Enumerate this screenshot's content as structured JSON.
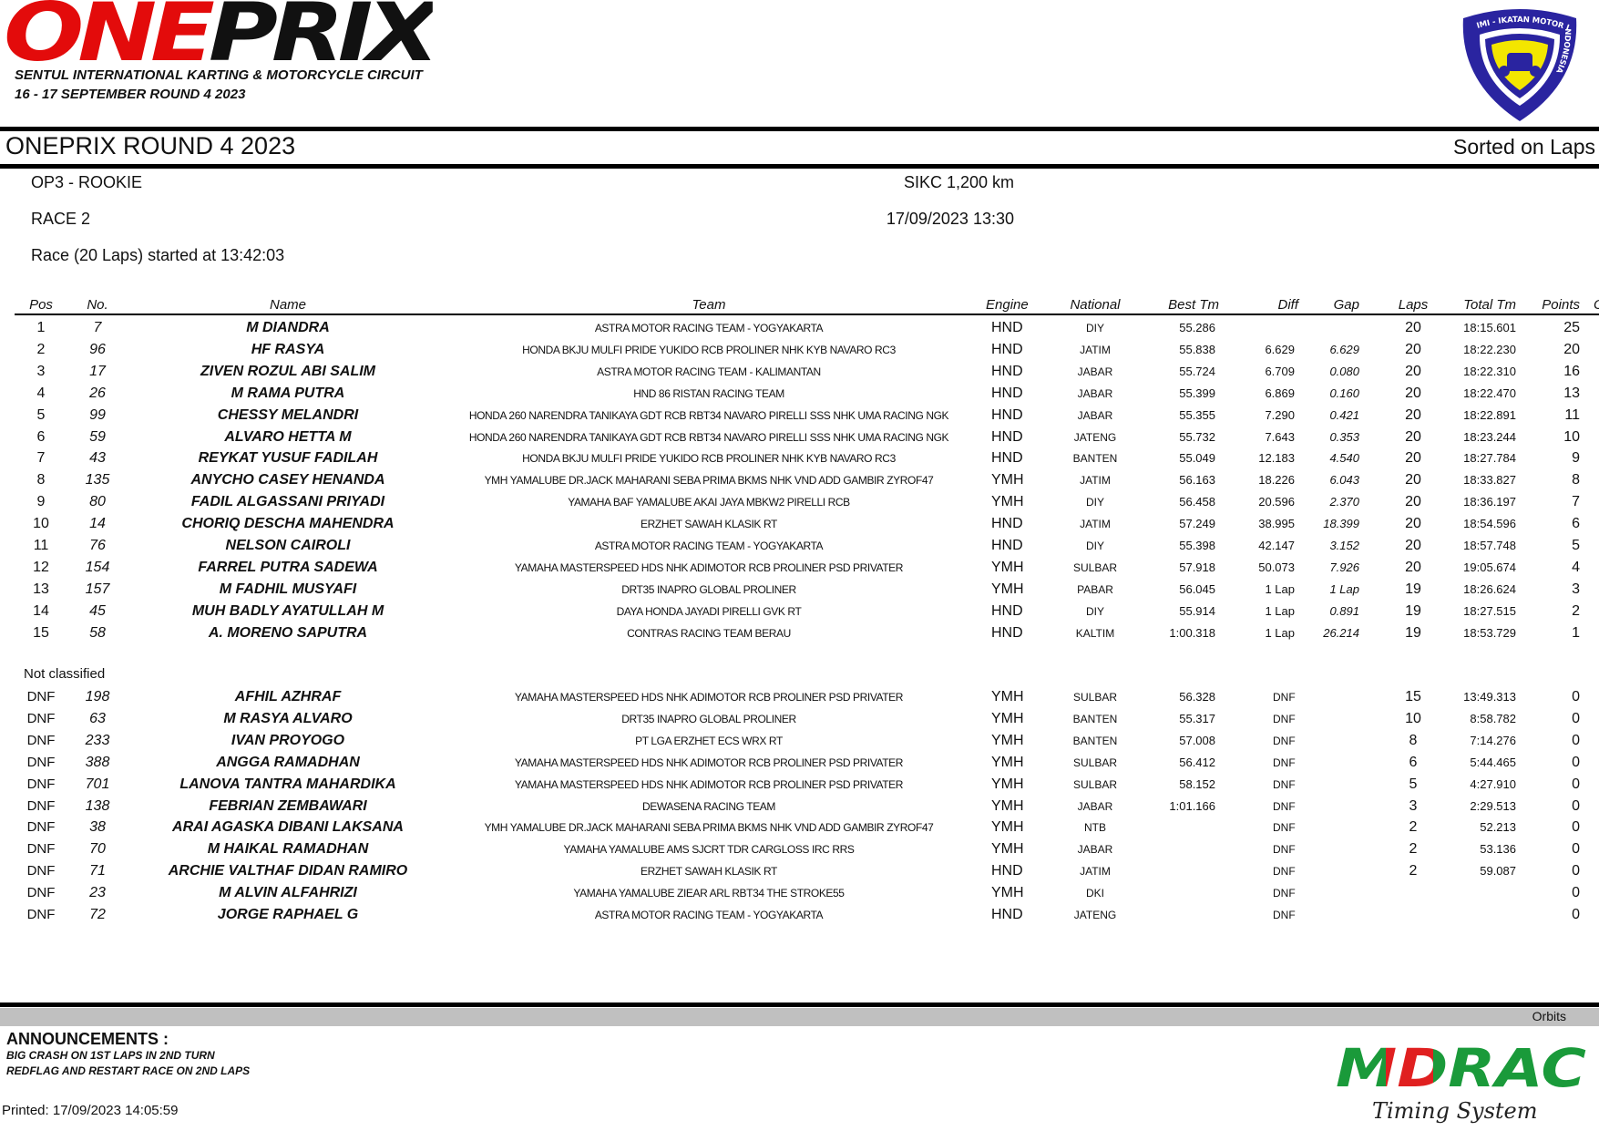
{
  "header": {
    "brand_logo_text": [
      "ONE",
      "PRIX"
    ],
    "venue": "SENTUL INTERNATIONAL KARTING & MOTORCYCLE CIRCUIT",
    "dates": "16 - 17 SEPTEMBER ROUND 4 2023",
    "imi_logo_text": "IMI - IKATAN MOTOR INDONESIA",
    "title": "ONEPRIX ROUND 4 2023",
    "sort_label": "Sorted on Laps"
  },
  "event": {
    "class": "OP3 - ROOKIE",
    "track": "SIKC 1,200 km",
    "race": "RACE 2",
    "datetime": "17/09/2023 13:30",
    "start_info": "Race (20 Laps) started at 13:42:03"
  },
  "columns": {
    "pos": "Pos",
    "no": "No.",
    "name": "Name",
    "team": "Team",
    "engine": "Engine",
    "national": "National",
    "best": "Best Tm",
    "diff": "Diff",
    "gap": "Gap",
    "laps": "Laps",
    "total": "Total Tm",
    "points": "Points",
    "cut": "C"
  },
  "classified": [
    {
      "pos": "1",
      "no": "7",
      "name": "M DIANDRA",
      "team": "ASTRA MOTOR RACING TEAM - YOGYAKARTA",
      "engine": "HND",
      "national": "DIY",
      "best": "55.286",
      "diff": "",
      "gap": "",
      "laps": "20",
      "total": "18:15.601",
      "points": "25"
    },
    {
      "pos": "2",
      "no": "96",
      "name": "HF RASYA",
      "team": "HONDA BKJU MULFI PRIDE YUKIDO RCB PROLINER NHK KYB NAVARO RC3",
      "engine": "HND",
      "national": "JATIM",
      "best": "55.838",
      "diff": "6.629",
      "gap": "6.629",
      "laps": "20",
      "total": "18:22.230",
      "points": "20"
    },
    {
      "pos": "3",
      "no": "17",
      "name": "ZIVEN ROZUL ABI SALIM",
      "team": "ASTRA MOTOR RACING TEAM - KALIMANTAN",
      "engine": "HND",
      "national": "JABAR",
      "best": "55.724",
      "diff": "6.709",
      "gap": "0.080",
      "laps": "20",
      "total": "18:22.310",
      "points": "16"
    },
    {
      "pos": "4",
      "no": "26",
      "name": "M RAMA PUTRA",
      "team": "HND 86 RISTAN RACING TEAM",
      "engine": "HND",
      "national": "JABAR",
      "best": "55.399",
      "diff": "6.869",
      "gap": "0.160",
      "laps": "20",
      "total": "18:22.470",
      "points": "13"
    },
    {
      "pos": "5",
      "no": "99",
      "name": "CHESSY MELANDRI",
      "team": "HONDA 260 NARENDRA TANIKAYA GDT RCB RBT34 NAVARO PIRELLI SSS NHK UMA RACING NGK",
      "engine": "HND",
      "national": "JABAR",
      "best": "55.355",
      "diff": "7.290",
      "gap": "0.421",
      "laps": "20",
      "total": "18:22.891",
      "points": "11"
    },
    {
      "pos": "6",
      "no": "59",
      "name": "ALVARO HETTA M",
      "team": "HONDA 260 NARENDRA TANIKAYA GDT RCB RBT34 NAVARO PIRELLI SSS NHK UMA RACING NGK",
      "engine": "HND",
      "national": "JATENG",
      "best": "55.732",
      "diff": "7.643",
      "gap": "0.353",
      "laps": "20",
      "total": "18:23.244",
      "points": "10"
    },
    {
      "pos": "7",
      "no": "43",
      "name": "REYKAT YUSUF FADILAH",
      "team": "HONDA BKJU MULFI PRIDE YUKIDO RCB PROLINER NHK KYB NAVARO RC3",
      "engine": "HND",
      "national": "BANTEN",
      "best": "55.049",
      "diff": "12.183",
      "gap": "4.540",
      "laps": "20",
      "total": "18:27.784",
      "points": "9"
    },
    {
      "pos": "8",
      "no": "135",
      "name": "ANYCHO CASEY HENANDA",
      "team": "YMH YAMALUBE DR.JACK MAHARANI SEBA PRIMA BKMS NHK VND ADD GAMBIR ZYROF47",
      "engine": "YMH",
      "national": "JATIM",
      "best": "56.163",
      "diff": "18.226",
      "gap": "6.043",
      "laps": "20",
      "total": "18:33.827",
      "points": "8"
    },
    {
      "pos": "9",
      "no": "80",
      "name": "FADIL ALGASSANI PRIYADI",
      "team": "YAMAHA BAF YAMALUBE AKAI JAYA MBKW2 PIRELLI RCB",
      "engine": "YMH",
      "national": "DIY",
      "best": "56.458",
      "diff": "20.596",
      "gap": "2.370",
      "laps": "20",
      "total": "18:36.197",
      "points": "7"
    },
    {
      "pos": "10",
      "no": "14",
      "name": "CHORIQ DESCHA MAHENDRA",
      "team": "ERZHET SAWAH KLASIK RT",
      "engine": "HND",
      "national": "JATIM",
      "best": "57.249",
      "diff": "38.995",
      "gap": "18.399",
      "laps": "20",
      "total": "18:54.596",
      "points": "6"
    },
    {
      "pos": "11",
      "no": "76",
      "name": "NELSON CAIROLI",
      "team": "ASTRA MOTOR RACING TEAM - YOGYAKARTA",
      "engine": "HND",
      "national": "DIY",
      "best": "55.398",
      "diff": "42.147",
      "gap": "3.152",
      "laps": "20",
      "total": "18:57.748",
      "points": "5"
    },
    {
      "pos": "12",
      "no": "154",
      "name": "FARREL PUTRA SADEWA",
      "team": "YAMAHA MASTERSPEED HDS NHK ADIMOTOR RCB PROLINER PSD PRIVATER",
      "engine": "YMH",
      "national": "SULBAR",
      "best": "57.918",
      "diff": "50.073",
      "gap": "7.926",
      "laps": "20",
      "total": "19:05.674",
      "points": "4"
    },
    {
      "pos": "13",
      "no": "157",
      "name": "M FADHIL MUSYAFI",
      "team": "DRT35 INAPRO GLOBAL PROLINER",
      "engine": "YMH",
      "national": "PABAR",
      "best": "56.045",
      "diff": "1 Lap",
      "gap": "1 Lap",
      "laps": "19",
      "total": "18:26.624",
      "points": "3"
    },
    {
      "pos": "14",
      "no": "45",
      "name": "MUH BADLY AYATULLAH M",
      "team": "DAYA HONDA JAYADI PIRELLI GVK RT",
      "engine": "HND",
      "national": "DIY",
      "best": "55.914",
      "diff": "1 Lap",
      "gap": "0.891",
      "laps": "19",
      "total": "18:27.515",
      "points": "2"
    },
    {
      "pos": "15",
      "no": "58",
      "name": "A. MORENO SAPUTRA",
      "team": "CONTRAS RACING TEAM BERAU",
      "engine": "HND",
      "national": "KALTIM",
      "best": "1:00.318",
      "diff": "1 Lap",
      "gap": "26.214",
      "laps": "19",
      "total": "18:53.729",
      "points": "1"
    }
  ],
  "not_classified_label": "Not classified",
  "not_classified": [
    {
      "pos": "DNF",
      "no": "198",
      "name": "AFHIL AZHRAF",
      "team": "YAMAHA MASTERSPEED HDS NHK ADIMOTOR RCB PROLINER PSD PRIVATER",
      "engine": "YMH",
      "national": "SULBAR",
      "best": "56.328",
      "diff": "DNF",
      "gap": "",
      "laps": "15",
      "total": "13:49.313",
      "points": "0"
    },
    {
      "pos": "DNF",
      "no": "63",
      "name": "M RASYA ALVARO",
      "team": "DRT35 INAPRO GLOBAL PROLINER",
      "engine": "YMH",
      "national": "BANTEN",
      "best": "55.317",
      "diff": "DNF",
      "gap": "",
      "laps": "10",
      "total": "8:58.782",
      "points": "0"
    },
    {
      "pos": "DNF",
      "no": "233",
      "name": "IVAN PROYOGO",
      "team": "PT LGA ERZHET ECS WRX RT",
      "engine": "YMH",
      "national": "BANTEN",
      "best": "57.008",
      "diff": "DNF",
      "gap": "",
      "laps": "8",
      "total": "7:14.276",
      "points": "0"
    },
    {
      "pos": "DNF",
      "no": "388",
      "name": "ANGGA RAMADHAN",
      "team": "YAMAHA MASTERSPEED HDS NHK ADIMOTOR RCB PROLINER PSD PRIVATER",
      "engine": "YMH",
      "national": "SULBAR",
      "best": "56.412",
      "diff": "DNF",
      "gap": "",
      "laps": "6",
      "total": "5:44.465",
      "points": "0"
    },
    {
      "pos": "DNF",
      "no": "701",
      "name": "LANOVA TANTRA MAHARDIKA",
      "team": "YAMAHA MASTERSPEED HDS NHK ADIMOTOR RCB PROLINER PSD PRIVATER",
      "engine": "YMH",
      "national": "SULBAR",
      "best": "58.152",
      "diff": "DNF",
      "gap": "",
      "laps": "5",
      "total": "4:27.910",
      "points": "0"
    },
    {
      "pos": "DNF",
      "no": "138",
      "name": "FEBRIAN ZEMBAWARI",
      "team": "DEWASENA RACING TEAM",
      "engine": "YMH",
      "national": "JABAR",
      "best": "1:01.166",
      "diff": "DNF",
      "gap": "",
      "laps": "3",
      "total": "2:29.513",
      "points": "0"
    },
    {
      "pos": "DNF",
      "no": "38",
      "name": "ARAI AGASKA DIBANI LAKSANA",
      "team": "YMH YAMALUBE DR.JACK MAHARANI SEBA PRIMA BKMS NHK VND ADD GAMBIR ZYROF47",
      "engine": "YMH",
      "national": "NTB",
      "best": "",
      "diff": "DNF",
      "gap": "",
      "laps": "2",
      "total": "52.213",
      "points": "0"
    },
    {
      "pos": "DNF",
      "no": "70",
      "name": "M HAIKAL RAMADHAN",
      "team": "YAMAHA YAMALUBE AMS SJCRT TDR CARGLOSS IRC RRS",
      "engine": "YMH",
      "national": "JABAR",
      "best": "",
      "diff": "DNF",
      "gap": "",
      "laps": "2",
      "total": "53.136",
      "points": "0"
    },
    {
      "pos": "DNF",
      "no": "71",
      "name": "ARCHIE VALTHAF DIDAN RAMIRO",
      "team": "ERZHET SAWAH KLASIK RT",
      "engine": "HND",
      "national": "JATIM",
      "best": "",
      "diff": "DNF",
      "gap": "",
      "laps": "2",
      "total": "59.087",
      "points": "0"
    },
    {
      "pos": "DNF",
      "no": "23",
      "name": "M ALVIN ALFAHRIZI",
      "team": "YAMAHA YAMALUBE ZIEAR ARL  RBT34 THE STROKE55",
      "engine": "YMH",
      "national": "DKI",
      "best": "",
      "diff": "DNF",
      "gap": "",
      "laps": "",
      "total": "",
      "points": "0"
    },
    {
      "pos": "DNF",
      "no": "72",
      "name": "JORGE RAPHAEL G",
      "team": "ASTRA MOTOR RACING TEAM - YOGYAKARTA",
      "engine": "HND",
      "national": "JATENG",
      "best": "",
      "diff": "DNF",
      "gap": "",
      "laps": "",
      "total": "",
      "points": "0"
    }
  ],
  "footer": {
    "orbits": "Orbits",
    "announcements_title": "ANNOUNCEMENTS :",
    "announcements": [
      "BIG CRASH ON 1ST LAPS IN 2ND TURN",
      "REDFLAG AND RESTART RACE ON 2ND LAPS"
    ],
    "printed": "Printed: 17/09/2023 14:05:59",
    "mdrac_logo_text": "MDRAC",
    "mdrac_tagline": "Timing System"
  },
  "colors": {
    "brand_red": "#e30b0b",
    "imi_blue": "#2a24a0",
    "imi_yellow": "#f3e600",
    "mdrac_green": "#1a9a3a",
    "mdrac_red": "#e02020",
    "band_grey": "#c0c0c0"
  }
}
